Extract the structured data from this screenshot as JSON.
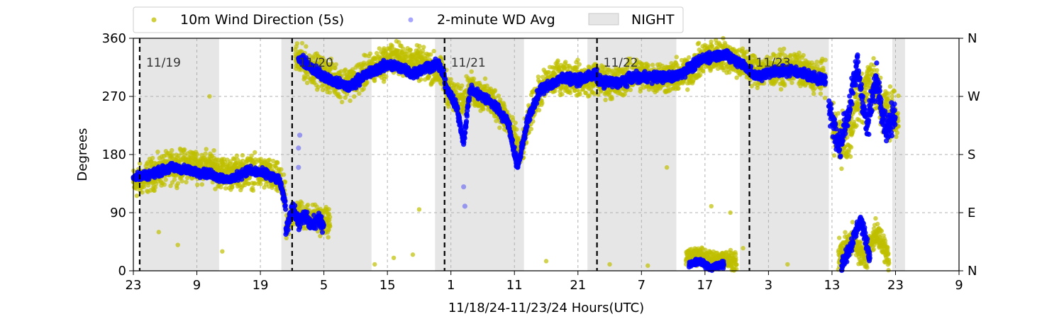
{
  "chart_data": {
    "type": "scatter",
    "xlabel": "11/18/24-11/23/24  Hours(UTC)",
    "ylabel": "Degrees",
    "x_range_hours": [
      23,
      153
    ],
    "ylim": [
      0,
      360
    ],
    "x_ticks": [
      {
        "hour": 23,
        "label": "23"
      },
      {
        "hour": 33,
        "label": "9"
      },
      {
        "hour": 43,
        "label": "19"
      },
      {
        "hour": 53,
        "label": "5"
      },
      {
        "hour": 63,
        "label": "15"
      },
      {
        "hour": 73,
        "label": "1"
      },
      {
        "hour": 83,
        "label": "11"
      },
      {
        "hour": 93,
        "label": "21"
      },
      {
        "hour": 103,
        "label": "7"
      },
      {
        "hour": 113,
        "label": "17"
      },
      {
        "hour": 123,
        "label": "3"
      },
      {
        "hour": 133,
        "label": "13"
      },
      {
        "hour": 143,
        "label": "23"
      },
      {
        "hour": 153,
        "label": "9"
      }
    ],
    "y_ticks_left": [
      "0",
      "90",
      "180",
      "270",
      "360"
    ],
    "y_ticks_right": [
      {
        "value": 0,
        "label": "N"
      },
      {
        "value": 90,
        "label": "E"
      },
      {
        "value": 180,
        "label": "S"
      },
      {
        "value": 270,
        "label": "W"
      },
      {
        "value": 360,
        "label": "N"
      }
    ],
    "grid": true,
    "legend_placement": "top, above plot",
    "day_markers": [
      {
        "hour": 24,
        "label": "11/19"
      },
      {
        "hour": 48,
        "label": "11/20"
      },
      {
        "hour": 72,
        "label": "11/21"
      },
      {
        "hour": 96,
        "label": "11/22"
      },
      {
        "hour": 120,
        "label": "11/23"
      }
    ],
    "night_periods": [
      [
        24,
        36.5
      ],
      [
        46.3,
        60.5
      ],
      [
        70.5,
        84.5
      ],
      [
        94.5,
        108.5
      ],
      [
        118.5,
        132.5
      ],
      [
        142.5,
        144.5
      ]
    ],
    "series": [
      {
        "name": "10m Wind Direction (5s)",
        "color": "#bfbf00",
        "segments": [
          {
            "x": [
              23,
              26,
              29,
              32,
              35,
              38,
              41,
              44,
              46,
              47
            ],
            "y": [
              135,
              150,
              160,
              165,
              160,
              150,
              155,
              150,
              140,
              110
            ],
            "spread": 35
          },
          {
            "x": [
              47,
              48,
              50,
              52,
              54
            ],
            "y": [
              60,
              90,
              85,
              80,
              75
            ],
            "spread": 30
          },
          {
            "x": [
              48.5,
              50,
              52,
              54,
              56,
              58,
              60,
              62,
              64,
              66,
              68,
              70,
              72
            ],
            "y": [
              330,
              320,
              310,
              300,
              290,
              295,
              310,
              320,
              330,
              325,
              320,
              315,
              300
            ],
            "spread": 35
          },
          {
            "x": [
              72,
              74,
              76,
              78,
              80,
              82,
              84,
              86,
              88,
              90,
              92,
              94,
              96
            ],
            "y": [
              290,
              260,
              280,
              270,
              260,
              230,
              180,
              260,
              290,
              300,
              300,
              295,
              300
            ],
            "spread": 35
          },
          {
            "x": [
              96,
              99,
              102,
              105,
              108,
              110,
              113,
              116,
              119,
              121,
              124,
              127,
              130,
              132
            ],
            "y": [
              295,
              290,
              305,
              300,
              300,
              305,
              330,
              335,
              320,
              310,
              310,
              315,
              300,
              300
            ],
            "spread": 35
          },
          {
            "x": [
              110,
              112,
              114,
              116,
              118
            ],
            "y": [
              20,
              25,
              15,
              20,
              10
            ],
            "spread": 20
          },
          {
            "x": [
              133,
              135,
              137,
              139,
              141,
              143.5
            ],
            "y": [
              220,
              200,
              260,
              300,
              250,
              240
            ],
            "spread": 60
          },
          {
            "x": [
              134,
              136,
              138,
              140,
              142
            ],
            "y": [
              20,
              50,
              20,
              60,
              20
            ],
            "spread": 30
          }
        ],
        "sparse_points": [
          {
            "x": 27,
            "y": 60
          },
          {
            "x": 30,
            "y": 40
          },
          {
            "x": 35,
            "y": 270
          },
          {
            "x": 37,
            "y": 30
          },
          {
            "x": 64,
            "y": 20
          },
          {
            "x": 67,
            "y": 25
          },
          {
            "x": 68,
            "y": 95
          },
          {
            "x": 61,
            "y": 10
          },
          {
            "x": 88,
            "y": 15
          },
          {
            "x": 98,
            "y": 10
          },
          {
            "x": 104,
            "y": 8
          },
          {
            "x": 107,
            "y": 160
          },
          {
            "x": 114,
            "y": 100
          },
          {
            "x": 117,
            "y": 90
          },
          {
            "x": 126,
            "y": 10
          },
          {
            "x": 119,
            "y": 35
          }
        ]
      },
      {
        "name": "2-minute WD Avg",
        "color": "#0000ff",
        "segments": [
          {
            "x": [
              23,
              26,
              29,
              32,
              35,
              38,
              41,
              44,
              46,
              47
            ],
            "y": [
              145,
              150,
              160,
              155,
              150,
              140,
              155,
              150,
              140,
              100
            ],
            "spread": 12
          },
          {
            "x": [
              47,
              48,
              49,
              50,
              51,
              52,
              53
            ],
            "y": [
              60,
              100,
              75,
              85,
              70,
              80,
              70
            ],
            "spread": 18
          },
          {
            "x": [
              49,
              51,
              53,
              55,
              57,
              59,
              61,
              63,
              65,
              67,
              69,
              71,
              72
            ],
            "y": [
              330,
              315,
              300,
              290,
              285,
              300,
              310,
              320,
              315,
              305,
              315,
              320,
              300
            ],
            "spread": 14
          },
          {
            "x": [
              72,
              74,
              75,
              76,
              78,
              80,
              82,
              83.5,
              85,
              87,
              89,
              91,
              93,
              96
            ],
            "y": [
              290,
              250,
              200,
              280,
              270,
              255,
              230,
              160,
              230,
              280,
              290,
              300,
              295,
              305
            ],
            "spread": 14
          },
          {
            "x": [
              96,
              99,
              102,
              105,
              108,
              110,
              113,
              116,
              119,
              121,
              124,
              127,
              130,
              132
            ],
            "y": [
              295,
              290,
              300,
              300,
              300,
              310,
              330,
              335,
              320,
              300,
              310,
              310,
              300,
              295
            ],
            "spread": 14
          },
          {
            "x": [
              110.5,
              112,
              114,
              116
            ],
            "y": [
              10,
              15,
              5,
              10
            ],
            "spread": 10
          },
          {
            "x": [
              132.5,
              134,
              135.5,
              137,
              138.5,
              140,
              141.5,
              143
            ],
            "y": [
              260,
              190,
              240,
              320,
              220,
              300,
              220,
              240
            ],
            "spread": 40
          },
          {
            "x": [
              134.5,
              136,
              137.5,
              139
            ],
            "y": [
              10,
              40,
              80,
              20
            ],
            "spread": 20
          }
        ],
        "sparse_points": [
          {
            "x": 49,
            "y": 190
          },
          {
            "x": 49,
            "y": 160
          },
          {
            "x": 75,
            "y": 130
          },
          {
            "x": 75.2,
            "y": 100
          },
          {
            "x": 49.2,
            "y": 210
          }
        ]
      }
    ]
  },
  "legend": {
    "items": [
      {
        "label": "10m Wind Direction (5s)",
        "kind": "marker",
        "color": "#bfbf00"
      },
      {
        "label": "2-minute WD Avg",
        "kind": "marker",
        "color": "#0000ff"
      },
      {
        "label": "NIGHT",
        "kind": "patch",
        "color": "#e6e6e6"
      }
    ]
  }
}
